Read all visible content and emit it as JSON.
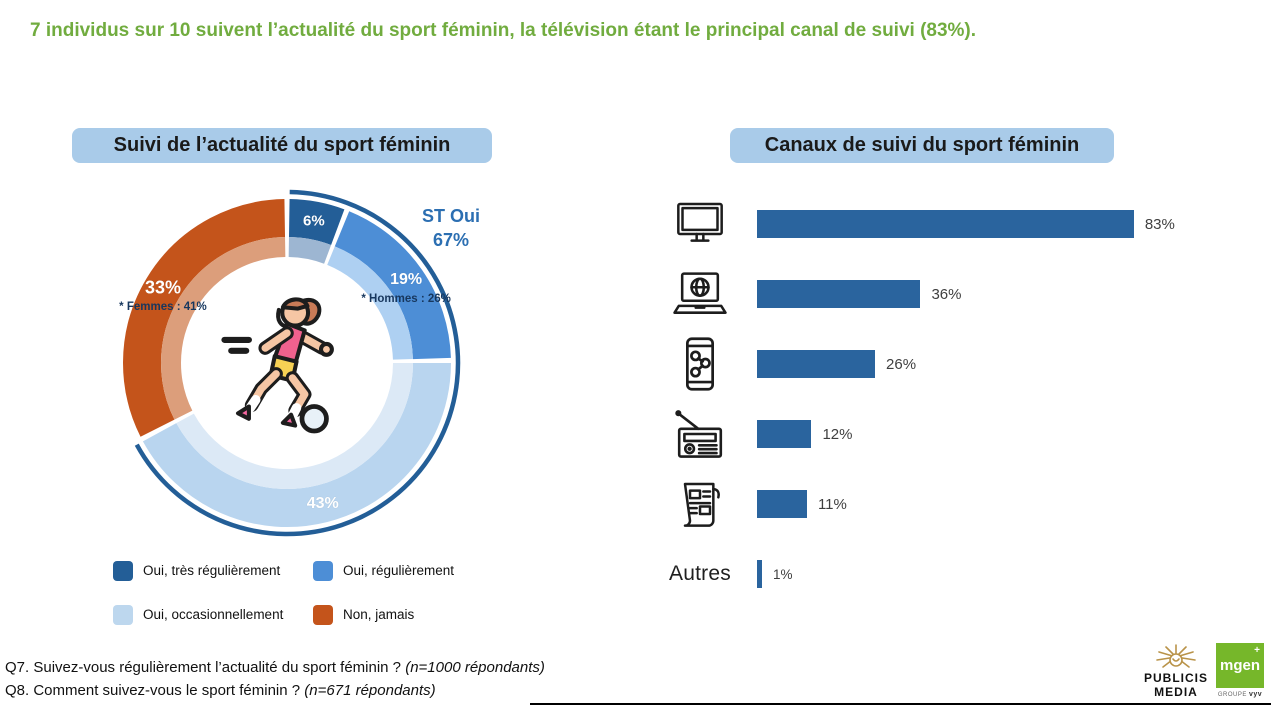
{
  "page": {
    "headline": "7 individus sur 10 suivent l’actualité du sport féminin, la télévision étant le principal canal de suivi (83%).",
    "headline_color": "#71AC3F",
    "background": "#FFFFFF"
  },
  "donut_panel": {
    "title": "Suivi de l’actualité du sport féminin",
    "title_bg": "#A9CBE9",
    "st_total": {
      "label": "ST Oui",
      "value": "67%",
      "color": "#2C6FB2"
    },
    "center_icon": "female-soccer-player-illustration"
  },
  "bars_panel": {
    "title": "Canaux de suivi du sport féminin",
    "title_bg": "#A9CBE9"
  },
  "chart_data": [
    {
      "type": "pie",
      "subtype": "donut",
      "title": "Suivi de l’actualité du sport féminin",
      "start_angle_deg": 0,
      "direction": "clockwise",
      "segments": [
        {
          "label": "Oui, très régulièrement",
          "value": 6,
          "text": "6%",
          "color": "#235E97",
          "inner_color": "#9DB6D2"
        },
        {
          "label": "Oui, régulièrement",
          "value": 19,
          "text": "19%",
          "color": "#4D8ED6",
          "inner_color": "#AED0F2",
          "annotation": "* Hommes : 26%"
        },
        {
          "label": "Oui, occasionnellement",
          "value": 43,
          "text": "43%",
          "color": "#B9D5EF",
          "inner_color": "#DCE9F6"
        },
        {
          "label": "Non, jamais",
          "value": 33,
          "text": "33%",
          "color": "#C4541B",
          "inner_color": "#DC9E7B",
          "annotation": "* Femmes : 41%"
        }
      ],
      "outer_arc": {
        "label": "ST Oui",
        "value": "67%",
        "covers_segments": [
          0,
          1,
          2
        ],
        "color": "#235E97"
      },
      "legend": [
        {
          "label": "Oui, très régulièrement",
          "color": "#235E97"
        },
        {
          "label": "Oui, régulièrement",
          "color": "#4D8ED6"
        },
        {
          "label": "Oui, occasionnellement",
          "color": "#BDD7EE"
        },
        {
          "label": "Non, jamais",
          "color": "#C4541B"
        }
      ],
      "legend_position": "bottom"
    },
    {
      "type": "bar",
      "orientation": "horizontal",
      "title": "Canaux de suivi du sport féminin",
      "bar_color": "#2A649E",
      "categories": [
        "television",
        "laptop-web",
        "smartphone-social",
        "radio",
        "newspaper-press",
        "autres"
      ],
      "icons": [
        "tv-icon",
        "laptop-icon",
        "smartphone-icon",
        "radio-icon",
        "newspaper-icon",
        null
      ],
      "autres_label": "Autres",
      "values": [
        83,
        36,
        26,
        12,
        11,
        1
      ],
      "labels": [
        "83%",
        "36%",
        "26%",
        "12%",
        "11%",
        "1%"
      ],
      "xlim": [
        0,
        100
      ],
      "grid": false,
      "value_labels_position": "right-of-bar"
    }
  ],
  "footer": {
    "q7": "Q7. Suivez-vous régulièrement l’actualité du sport féminin ? ",
    "q7_note": "(n=1000 répondants)",
    "q8": "Q8. Comment suivez-vous le sport féminin ? ",
    "q8_note": "(n=671 répondants)"
  },
  "logos": {
    "publicis_line1": "PUBLICIS",
    "publicis_line2": "MEDIA",
    "publicis_gold": "#B99349",
    "mgen_text": "mgen",
    "mgen_plus": "+",
    "mgen_green": "#76B72A",
    "mgen_sub_prefix": "GROUPE ",
    "mgen_sub_bold": "vyv"
  }
}
